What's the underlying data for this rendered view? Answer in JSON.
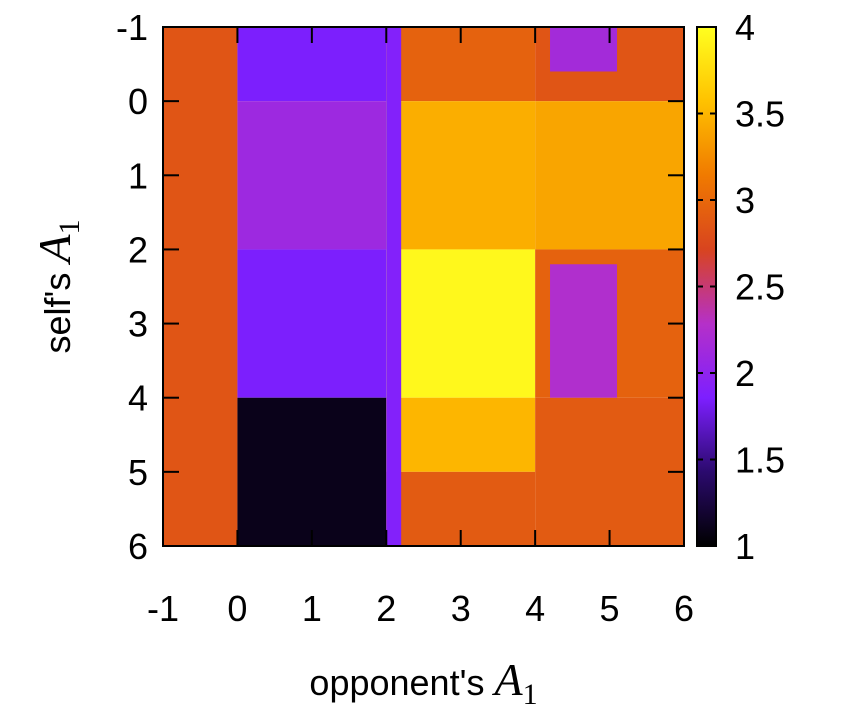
{
  "chart_data": {
    "type": "heatmap",
    "title": "",
    "xlabel": {
      "prefix": "opponent's ",
      "symbol": "A",
      "subscript": "1"
    },
    "ylabel": {
      "prefix": "self's ",
      "symbol": "A",
      "subscript": "1"
    },
    "xlim": [
      -1,
      6
    ],
    "ylim": [
      -1,
      6
    ],
    "y_inverted": true,
    "xticks": [
      "-1",
      "0",
      "1",
      "2",
      "3",
      "4",
      "5",
      "6"
    ],
    "yticks": [
      "-1",
      "0",
      "1",
      "2",
      "3",
      "4",
      "5",
      "6"
    ],
    "colorbar": {
      "range": [
        1,
        4
      ],
      "ticks": [
        "1",
        "1.5",
        "2",
        "2.5",
        "3",
        "3.5",
        "4"
      ],
      "colormap": [
        "#000000",
        "#2b0a6e",
        "#7d1fff",
        "#b530c8",
        "#d8441f",
        "#f07a00",
        "#ffc200",
        "#ffff20"
      ]
    },
    "regions": [
      {
        "x": [
          -1,
          0
        ],
        "y": [
          -1,
          6
        ],
        "value": 2.85
      },
      {
        "x": [
          0,
          2
        ],
        "y": [
          -1,
          0
        ],
        "value": 1.85
      },
      {
        "x": [
          0,
          2
        ],
        "y": [
          0,
          2
        ],
        "value": 2.1
      },
      {
        "x": [
          0,
          2
        ],
        "y": [
          2,
          4
        ],
        "value": 1.85
      },
      {
        "x": [
          0,
          2
        ],
        "y": [
          4,
          6
        ],
        "value": 1.1
      },
      {
        "x": [
          2,
          4
        ],
        "y": [
          -1,
          0
        ],
        "value": 2.95
      },
      {
        "x": [
          2,
          4
        ],
        "y": [
          0,
          2
        ],
        "value": 3.45
      },
      {
        "x": [
          2,
          4
        ],
        "y": [
          2,
          4
        ],
        "value": 3.95
      },
      {
        "x": [
          2,
          4
        ],
        "y": [
          4,
          5
        ],
        "value": 3.5
      },
      {
        "x": [
          2,
          4
        ],
        "y": [
          5,
          6
        ],
        "value": 2.9
      },
      {
        "x": [
          4,
          6
        ],
        "y": [
          -1,
          0
        ],
        "value": 2.85
      },
      {
        "x": [
          4,
          6
        ],
        "y": [
          0,
          2
        ],
        "value": 3.4
      },
      {
        "x": [
          4,
          6
        ],
        "y": [
          2,
          4
        ],
        "value": 2.95
      },
      {
        "x": [
          4,
          6
        ],
        "y": [
          4,
          6
        ],
        "value": 2.9
      },
      {
        "x": [
          4.2,
          5.1
        ],
        "y": [
          -1,
          -0.4
        ],
        "value": 2.15
      },
      {
        "x": [
          4.2,
          5.1
        ],
        "y": [
          2.2,
          4
        ],
        "value": 2.25
      },
      {
        "x": [
          2,
          2.2
        ],
        "y": [
          -1,
          6
        ],
        "value": 1.9
      }
    ]
  }
}
